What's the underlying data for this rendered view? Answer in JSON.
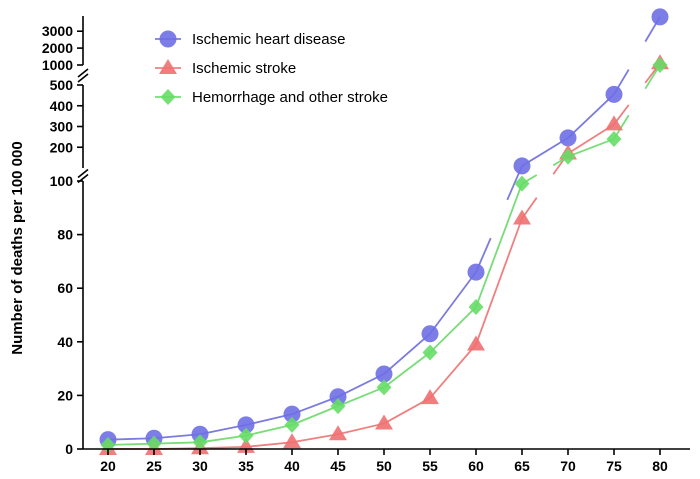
{
  "chart_data": {
    "type": "line",
    "title": "",
    "xlabel": "",
    "ylabel": "Number of deaths per 100 000",
    "x": [
      20,
      25,
      30,
      35,
      40,
      45,
      50,
      55,
      60,
      65,
      70,
      75,
      80
    ],
    "x_tick_labels": [
      "20",
      "25",
      "30",
      "35",
      "40",
      "45",
      "50",
      "55",
      "60",
      "65",
      "70",
      "75",
      "80"
    ],
    "y_segments": [
      {
        "range": [
          0,
          100
        ],
        "ticks": [
          0,
          20,
          40,
          60,
          80,
          100
        ],
        "tick_labels": [
          "0",
          "20",
          "40",
          "60",
          "80",
          "100"
        ]
      },
      {
        "range": [
          100,
          500
        ],
        "ticks": [
          200,
          300,
          400,
          500
        ],
        "tick_labels": [
          "200",
          "300",
          "400",
          "500"
        ]
      },
      {
        "range": [
          1000,
          3900
        ],
        "ticks": [
          1000,
          2000,
          3000
        ],
        "tick_labels": [
          "1000",
          "2000",
          "3000"
        ]
      }
    ],
    "axis_break_symbols": [
      "//",
      "//",
      "//"
    ],
    "legend_position": "top-left",
    "series": [
      {
        "name": "Ischemic heart disease",
        "marker": "circle",
        "color": "#6f6fe6",
        "line_color": "#7b7be0",
        "values": [
          3.5,
          4,
          5.5,
          9,
          13,
          19.5,
          28,
          43,
          66,
          110,
          245,
          455,
          3850
        ]
      },
      {
        "name": "Ischemic stroke",
        "marker": "triangle",
        "color": "#f07070",
        "line_color": "#f08080",
        "values": [
          0,
          0,
          0.3,
          0.8,
          2.5,
          5.5,
          9.5,
          19,
          39,
          86,
          170,
          310,
          1100
        ]
      },
      {
        "name": "Hemorrhage and other stroke",
        "marker": "diamond",
        "color": "#66dd66",
        "line_color": "#77dd77",
        "values": [
          1.5,
          2,
          2.5,
          5,
          9,
          16,
          23,
          36,
          53,
          99,
          155,
          240,
          980
        ]
      }
    ]
  }
}
